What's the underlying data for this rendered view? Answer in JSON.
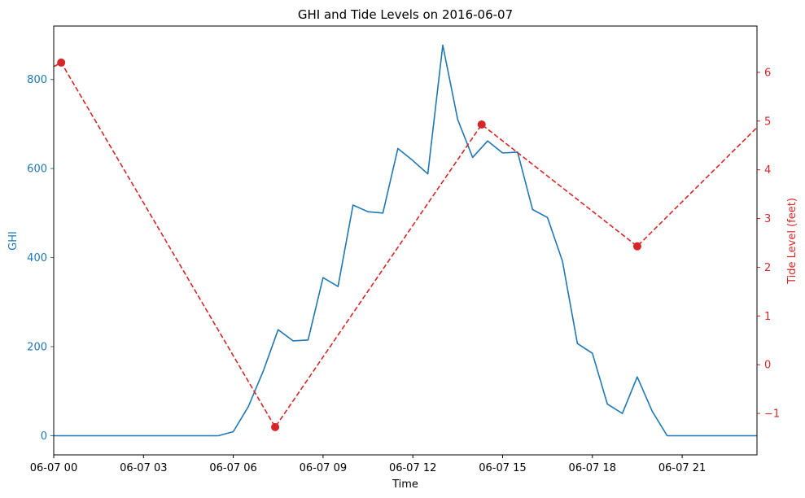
{
  "chart_data": {
    "type": "line",
    "title": "GHI and Tide Levels on 2016-06-07",
    "xlabel": "Time",
    "ylabel_left": "GHI",
    "ylabel_right": "Tide Level (feet)",
    "x_tick_labels": [
      "06-07 00",
      "06-07 03",
      "06-07 06",
      "06-07 09",
      "06-07 12",
      "06-07 15",
      "06-07 18",
      "06-07 21"
    ],
    "x_tick_hours": [
      0,
      3,
      6,
      9,
      12,
      15,
      18,
      21
    ],
    "xlim_hours": [
      0,
      23.5
    ],
    "ylim_left": [
      -43,
      920
    ],
    "left_ticks": [
      0,
      200,
      400,
      600,
      800
    ],
    "ylim_right": [
      -1.85,
      6.95
    ],
    "right_ticks": [
      -1,
      0,
      1,
      2,
      3,
      4,
      5,
      6
    ],
    "left_color": "#1f77b4",
    "right_color": "#d62728",
    "series": [
      {
        "axis": "left",
        "style": "solid",
        "color": "#1f77b4",
        "x_hours": [
          0,
          0.5,
          1,
          1.5,
          2,
          2.5,
          3,
          3.5,
          4,
          4.5,
          5,
          5.5,
          6,
          6.5,
          7,
          7.5,
          8,
          8.5,
          9,
          9.5,
          10,
          10.5,
          11,
          11.5,
          12,
          12.5,
          13,
          13.5,
          14,
          14.5,
          15,
          15.5,
          16,
          16.5,
          17,
          17.5,
          18,
          18.5,
          19,
          19.5,
          20,
          20.5,
          21,
          21.5,
          22,
          22.5,
          23,
          23.5
        ],
        "values": [
          0,
          0,
          0,
          0,
          0,
          0,
          0,
          0,
          0,
          0,
          0,
          0,
          9,
          65,
          145,
          238,
          213,
          215,
          355,
          335,
          518,
          503,
          500,
          645,
          618,
          588,
          877,
          710,
          625,
          662,
          635,
          637,
          508,
          490,
          392,
          207,
          185,
          71,
          50,
          132,
          55,
          0,
          0,
          0,
          0,
          0,
          0,
          0
        ]
      },
      {
        "axis": "right",
        "style": "dashed",
        "color": "#d62728",
        "x_hours": [
          -0.2,
          0.25,
          7.4,
          14.3,
          19.5,
          23.6
        ],
        "values": [
          6.05,
          6.2,
          -1.28,
          4.93,
          2.43,
          4.93
        ],
        "markers": [
          {
            "time": "06-07 00:15",
            "hour": 0.25,
            "value": 6.2
          },
          {
            "time": "06-07 07:24",
            "hour": 7.4,
            "value": -1.28
          },
          {
            "time": "06-07 14:18",
            "hour": 14.3,
            "value": 4.93
          },
          {
            "time": "06-07 19:30",
            "hour": 19.5,
            "value": 2.43
          }
        ]
      }
    ]
  }
}
